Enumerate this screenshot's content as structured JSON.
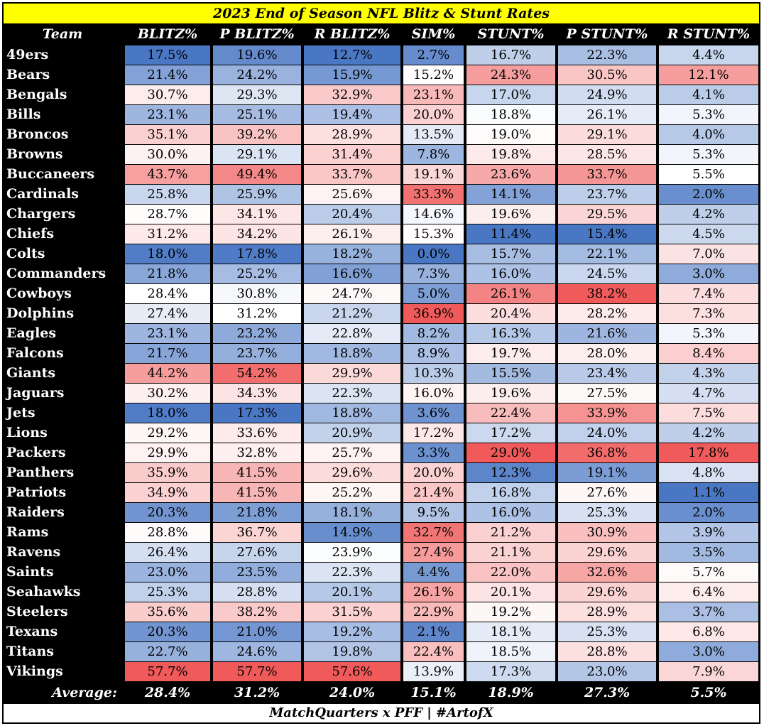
{
  "chart_data": {
    "type": "table",
    "title": "2023 End of Season NFL Blitz & Stunt Rates",
    "team_header": "Team",
    "columns": [
      "BLITZ%",
      "P BLITZ%",
      "R BLITZ%",
      "SIM%",
      "STUNT%",
      "P STUNT%",
      "R STUNT%"
    ],
    "rows": [
      {
        "team": "49ers",
        "values": [
          "17.5%",
          "19.6%",
          "12.7%",
          "2.7%",
          "16.7%",
          "22.3%",
          "4.4%"
        ]
      },
      {
        "team": "Bears",
        "values": [
          "21.4%",
          "24.2%",
          "15.9%",
          "15.2%",
          "24.3%",
          "30.5%",
          "12.1%"
        ]
      },
      {
        "team": "Bengals",
        "values": [
          "30.7%",
          "29.3%",
          "32.9%",
          "23.1%",
          "17.0%",
          "24.9%",
          "4.1%"
        ]
      },
      {
        "team": "Bills",
        "values": [
          "23.1%",
          "25.1%",
          "19.4%",
          "20.0%",
          "18.8%",
          "26.1%",
          "5.3%"
        ]
      },
      {
        "team": "Broncos",
        "values": [
          "35.1%",
          "39.2%",
          "28.9%",
          "13.5%",
          "19.0%",
          "29.1%",
          "4.0%"
        ]
      },
      {
        "team": "Browns",
        "values": [
          "30.0%",
          "29.1%",
          "31.4%",
          "7.8%",
          "19.8%",
          "28.5%",
          "5.3%"
        ]
      },
      {
        "team": "Buccaneers",
        "values": [
          "43.7%",
          "49.4%",
          "33.7%",
          "19.1%",
          "23.6%",
          "33.7%",
          "5.5%"
        ]
      },
      {
        "team": "Cardinals",
        "values": [
          "25.8%",
          "25.9%",
          "25.6%",
          "33.3%",
          "14.1%",
          "23.7%",
          "2.0%"
        ]
      },
      {
        "team": "Chargers",
        "values": [
          "28.7%",
          "34.1%",
          "20.4%",
          "14.6%",
          "19.6%",
          "29.5%",
          "4.2%"
        ]
      },
      {
        "team": "Chiefs",
        "values": [
          "31.2%",
          "34.2%",
          "26.1%",
          "15.3%",
          "11.4%",
          "15.4%",
          "4.5%"
        ]
      },
      {
        "team": "Colts",
        "values": [
          "18.0%",
          "17.8%",
          "18.2%",
          "0.0%",
          "15.7%",
          "22.1%",
          "7.0%"
        ]
      },
      {
        "team": "Commanders",
        "values": [
          "21.8%",
          "25.2%",
          "16.6%",
          "7.3%",
          "16.0%",
          "24.5%",
          "3.0%"
        ]
      },
      {
        "team": "Cowboys",
        "values": [
          "28.4%",
          "30.8%",
          "24.7%",
          "5.0%",
          "26.1%",
          "38.2%",
          "7.4%"
        ]
      },
      {
        "team": "Dolphins",
        "values": [
          "27.4%",
          "31.2%",
          "21.2%",
          "36.9%",
          "20.4%",
          "28.2%",
          "7.3%"
        ]
      },
      {
        "team": "Eagles",
        "values": [
          "23.1%",
          "23.2%",
          "22.8%",
          "8.2%",
          "16.3%",
          "21.6%",
          "5.3%"
        ]
      },
      {
        "team": "Falcons",
        "values": [
          "21.7%",
          "23.7%",
          "18.8%",
          "8.9%",
          "19.7%",
          "28.0%",
          "8.4%"
        ]
      },
      {
        "team": "Giants",
        "values": [
          "44.2%",
          "54.2%",
          "29.9%",
          "10.3%",
          "15.5%",
          "23.4%",
          "4.3%"
        ]
      },
      {
        "team": "Jaguars",
        "values": [
          "30.2%",
          "34.3%",
          "22.3%",
          "16.0%",
          "19.6%",
          "27.5%",
          "4.7%"
        ]
      },
      {
        "team": "Jets",
        "values": [
          "18.0%",
          "17.3%",
          "18.8%",
          "3.6%",
          "22.4%",
          "33.9%",
          "7.5%"
        ]
      },
      {
        "team": "Lions",
        "values": [
          "29.2%",
          "33.6%",
          "20.9%",
          "17.2%",
          "17.2%",
          "24.0%",
          "4.2%"
        ]
      },
      {
        "team": "Packers",
        "values": [
          "29.9%",
          "32.8%",
          "25.7%",
          "3.3%",
          "29.0%",
          "36.8%",
          "17.8%"
        ]
      },
      {
        "team": "Panthers",
        "values": [
          "35.9%",
          "41.5%",
          "29.6%",
          "20.0%",
          "12.3%",
          "19.1%",
          "4.8%"
        ]
      },
      {
        "team": "Patriots",
        "values": [
          "34.9%",
          "41.5%",
          "25.2%",
          "21.4%",
          "16.8%",
          "27.6%",
          "1.1%"
        ]
      },
      {
        "team": "Raiders",
        "values": [
          "20.3%",
          "21.8%",
          "18.1%",
          "9.5%",
          "16.0%",
          "25.3%",
          "2.0%"
        ]
      },
      {
        "team": "Rams",
        "values": [
          "28.8%",
          "36.7%",
          "14.9%",
          "32.7%",
          "21.2%",
          "30.9%",
          "3.9%"
        ]
      },
      {
        "team": "Ravens",
        "values": [
          "26.4%",
          "27.6%",
          "23.9%",
          "27.4%",
          "21.1%",
          "29.6%",
          "3.5%"
        ]
      },
      {
        "team": "Saints",
        "values": [
          "23.0%",
          "23.5%",
          "22.3%",
          "4.4%",
          "22.0%",
          "32.6%",
          "5.7%"
        ]
      },
      {
        "team": "Seahawks",
        "values": [
          "25.3%",
          "28.8%",
          "20.1%",
          "26.1%",
          "20.1%",
          "29.6%",
          "6.4%"
        ]
      },
      {
        "team": "Steelers",
        "values": [
          "35.6%",
          "38.2%",
          "31.5%",
          "22.9%",
          "19.2%",
          "28.9%",
          "3.7%"
        ]
      },
      {
        "team": "Texans",
        "values": [
          "20.3%",
          "21.0%",
          "19.2%",
          "2.1%",
          "18.1%",
          "25.3%",
          "6.8%"
        ]
      },
      {
        "team": "Titans",
        "values": [
          "22.7%",
          "24.6%",
          "19.8%",
          "22.4%",
          "18.5%",
          "28.8%",
          "3.0%"
        ]
      },
      {
        "team": "Vikings",
        "values": [
          "57.7%",
          "57.7%",
          "57.6%",
          "13.9%",
          "17.3%",
          "23.0%",
          "7.9%"
        ]
      }
    ],
    "average_label": "Average:",
    "averages": [
      "28.4%",
      "31.2%",
      "24.0%",
      "15.1%",
      "18.9%",
      "27.3%",
      "5.5%"
    ],
    "footer": "MatchQuarters x PFF | #ArtofX",
    "colors": {
      "title_bg": "#ffff00",
      "low": "#4a77c4",
      "mid": "#ffffff",
      "high": "#f05a5a",
      "frame": "#000000"
    }
  }
}
